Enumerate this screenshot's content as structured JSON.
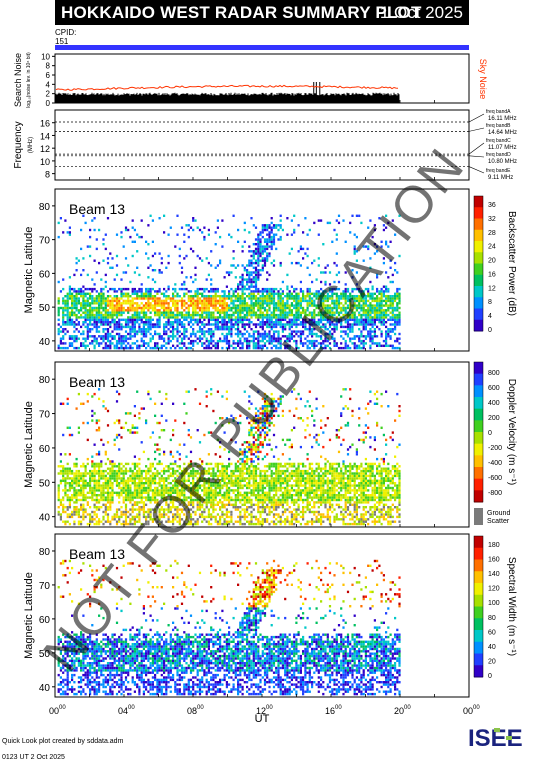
{
  "header": {
    "title": "HOKKAIDO WEST RADAR SUMMARY PLOT",
    "date": "1 Oct 2025"
  },
  "cpid": {
    "label": "CPID:",
    "value": "151",
    "bar_color": "#3333ff"
  },
  "noise_panel": {
    "ylabel": "Search Noise",
    "ylabel_sub": "log₁₀(noise lev. in 10⁶ bit)",
    "yticks": [
      "0",
      "2",
      "4",
      "6",
      "8",
      "10"
    ],
    "right_label": "Sky Noise",
    "right_label_color": "#ff3300",
    "search_color": "#000000",
    "sky_color": "#ff3300",
    "data_end_hour": 20
  },
  "freq_panel": {
    "ylabel": "Frequency",
    "ylabel_unit": "(MHz)",
    "yticks": [
      "8",
      "10",
      "12",
      "14",
      "16"
    ],
    "bands": [
      {
        "name": "freq bandA",
        "value": "16.11 MHz",
        "freq": 16.11
      },
      {
        "name": "freq bandB",
        "value": "14.64 MHz",
        "freq": 14.64
      },
      {
        "name": "freq bandC",
        "value": "11.07 MHz",
        "freq": 11.07
      },
      {
        "name": "freq bandD",
        "value": "10.80 MHz",
        "freq": 10.8
      },
      {
        "name": "freq bandE",
        "value": "9.11 MHz",
        "freq": 9.11
      }
    ]
  },
  "chart_data": [
    {
      "type": "heatmap",
      "beam_label": "Beam 13",
      "ylabel": "Magnetic Latitude",
      "yticks": [
        "40",
        "50",
        "60",
        "70",
        "80"
      ],
      "ylim": [
        37,
        85
      ],
      "colorbar_label": "Backscatter Power (dB)",
      "colorbar_ticks": [
        "0",
        "4",
        "8",
        "12",
        "16",
        "20",
        "24",
        "28",
        "32",
        "36"
      ],
      "palette": [
        "#3000c8",
        "#2040ff",
        "#0090ff",
        "#00c8c8",
        "#00c060",
        "#40d020",
        "#a8e000",
        "#f0f000",
        "#ffc000",
        "#ff7000",
        "#ff2000",
        "#c00000"
      ]
    },
    {
      "type": "heatmap",
      "beam_label": "Beam 13",
      "ylabel": "Magnetic Latitude",
      "yticks": [
        "40",
        "50",
        "60",
        "70",
        "80"
      ],
      "ylim": [
        37,
        85
      ],
      "colorbar_label": "Doppler Velocity (m s⁻¹)",
      "colorbar_ticks": [
        "800",
        "600",
        "400",
        "200",
        "0",
        "-200",
        "-400",
        "-600",
        "-800"
      ],
      "ground_label": "Ground",
      "ground_label2": "Scatter",
      "palette": [
        "#3000c8",
        "#2040ff",
        "#0090ff",
        "#00c8c8",
        "#00c060",
        "#40d020",
        "#a8e000",
        "#f0f000",
        "#ffc000",
        "#ff7000",
        "#ff2000",
        "#c00000"
      ]
    },
    {
      "type": "heatmap",
      "beam_label": "Beam 13",
      "ylabel": "Magnetic Latitude",
      "yticks": [
        "40",
        "50",
        "60",
        "70",
        "80"
      ],
      "ylim": [
        37,
        85
      ],
      "colorbar_label": "Spectral Width (m s⁻¹)",
      "colorbar_ticks": [
        "0",
        "20",
        "40",
        "60",
        "80",
        "100",
        "120",
        "140",
        "160",
        "180"
      ],
      "palette": [
        "#3000c8",
        "#2040ff",
        "#0090ff",
        "#00c8c8",
        "#00c060",
        "#40d020",
        "#a8e000",
        "#f0f000",
        "#ffc000",
        "#ff7000",
        "#ff2000",
        "#c00000"
      ]
    }
  ],
  "xaxis": {
    "label": "UT",
    "ticks": [
      {
        "h": "00",
        "m": "00"
      },
      {
        "h": "04",
        "m": "00"
      },
      {
        "h": "08",
        "m": "00"
      },
      {
        "h": "12",
        "m": "00"
      },
      {
        "h": "16",
        "m": "00"
      },
      {
        "h": "20",
        "m": "00"
      },
      {
        "h": "00",
        "m": "00"
      }
    ],
    "range_hours": [
      0,
      24
    ]
  },
  "watermark": "NOT FOR PUBLICATION",
  "footer": {
    "line1": "Quick Look plot created by sddata.adm",
    "line2": "0123 UT  2 Oct 2025"
  },
  "logo": {
    "text": "ISEE"
  }
}
